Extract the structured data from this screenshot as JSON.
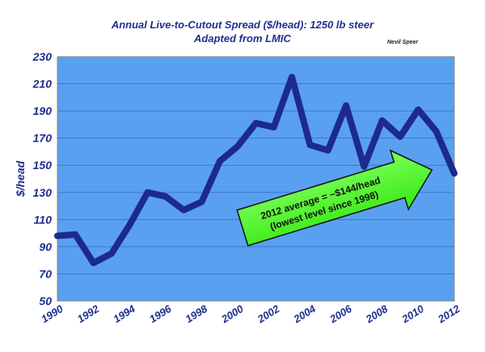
{
  "chart_data": {
    "type": "line",
    "title": "Annual Live-to-Cutout Spread ($/head):  1250 lb steer",
    "subtitle": "Adapted from LMIC",
    "credit": "Nevil Speer",
    "ylabel": "$/head",
    "xlabel": "",
    "ylim": [
      50,
      230
    ],
    "xlim": [
      1990,
      2012
    ],
    "yticks": [
      50,
      70,
      90,
      110,
      130,
      150,
      170,
      190,
      210,
      230
    ],
    "xticks": [
      1990,
      1992,
      1994,
      1996,
      1998,
      2000,
      2002,
      2004,
      2006,
      2008,
      2010,
      2012
    ],
    "grid": true,
    "legend": "none",
    "colors": {
      "plot_bg": "#5aa0f0",
      "line": "#1c2a8c",
      "grid": "#3d78c8",
      "annotation_fill": "#4dff2a"
    },
    "series": [
      {
        "x": [
          1990,
          1991,
          1992,
          1993,
          1994,
          1995,
          1996,
          1997,
          1998,
          1999,
          2000,
          2001,
          2002,
          2003,
          2004,
          2005,
          2006,
          2007,
          2008,
          2009,
          2010,
          2011,
          2012
        ],
        "values": [
          98,
          99,
          78,
          85,
          106,
          130,
          127,
          117,
          123,
          153,
          164,
          181,
          178,
          215,
          165,
          161,
          194,
          149,
          183,
          171,
          191,
          175,
          144
        ]
      }
    ],
    "annotations": [
      {
        "line1": "2012 average = ~$144/head",
        "line2": "(lowest  level since 1998)"
      }
    ]
  }
}
